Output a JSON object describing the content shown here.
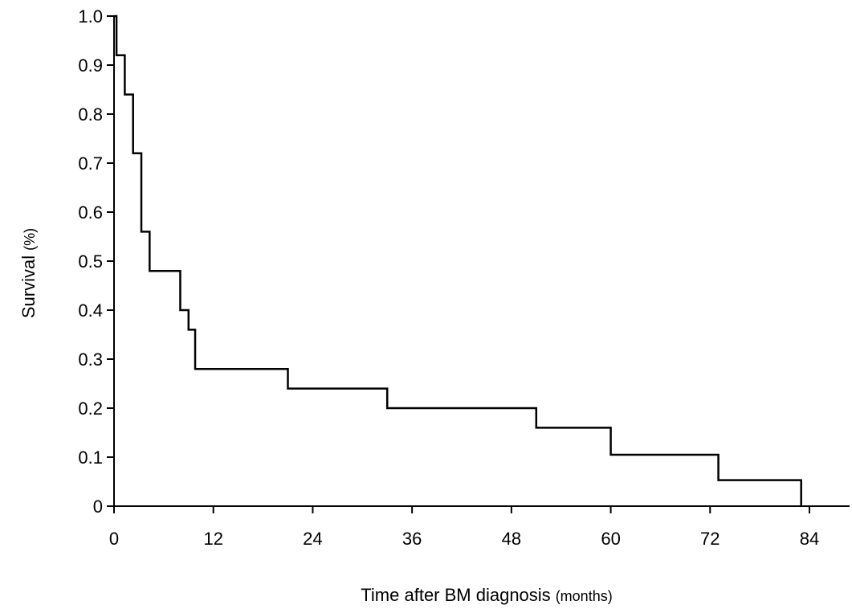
{
  "chart_data": {
    "type": "line",
    "subtype": "step",
    "title": "",
    "xlabel": "Time after BM diagnosis",
    "xlabel_unit": "(months)",
    "ylabel": "Survival",
    "ylabel_unit": "(%)",
    "xlim": [
      0,
      88
    ],
    "ylim": [
      0,
      1.0
    ],
    "x_ticks": [
      0,
      12,
      24,
      36,
      48,
      60,
      72,
      84
    ],
    "x_tick_labels": [
      "0",
      "12",
      "24",
      "36",
      "48",
      "60",
      "72",
      "84"
    ],
    "y_ticks": [
      0,
      0.1,
      0.2,
      0.3,
      0.4,
      0.5,
      0.6,
      0.7,
      0.8,
      0.9,
      1.0
    ],
    "y_tick_labels": [
      "0",
      "0.1",
      "0.2",
      "0.3",
      "0.4",
      "0.5",
      "0.6",
      "0.7",
      "0.8",
      "0.9",
      "1.0"
    ],
    "grid": false,
    "legend": "none",
    "line_color": "#000000",
    "series": [
      {
        "x": [
          0,
          0.3,
          1.3,
          2.3,
          3.3,
          4.3,
          8.0,
          9.0,
          9.8,
          21.0,
          33.0,
          51.0,
          60.0,
          73.0,
          83.0
        ],
        "y": [
          1.0,
          0.92,
          0.84,
          0.72,
          0.56,
          0.48,
          0.4,
          0.36,
          0.28,
          0.24,
          0.2,
          0.16,
          0.105,
          0.053,
          0.0
        ]
      }
    ]
  }
}
